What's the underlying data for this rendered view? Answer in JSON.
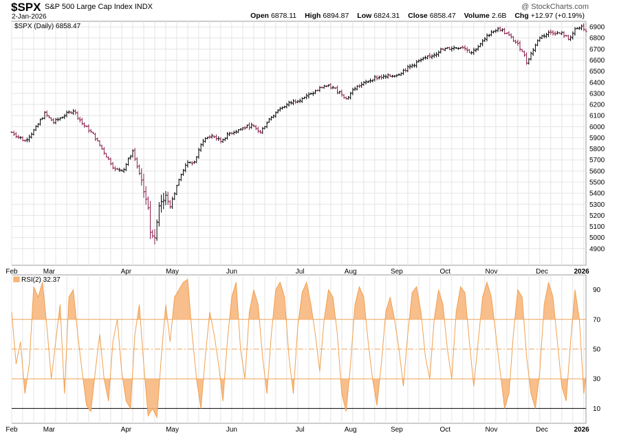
{
  "header": {
    "symbol": "$SPX",
    "name": "S&P 500 Large Cap Index",
    "exchange": "INDX",
    "date": "2-Jan-2026",
    "watermark": "@ StockCharts.com",
    "open_label": "Open",
    "open": "6878.11",
    "high_label": "High",
    "high": "6894.87",
    "low_label": "Low",
    "low": "6824.31",
    "close_label": "Close",
    "close": "6858.47",
    "volume_label": "Volume",
    "volume": "2.6B",
    "chg_label": "Chg",
    "chg": "+12.97 (+0.19%)"
  },
  "colors": {
    "up": "#000000",
    "down": "#8b1a4a",
    "rsi_line": "#f0a050",
    "rsi_fill": "#f7b77e",
    "grid": "#e4e4e4"
  },
  "chart_data": [
    {
      "type": "line",
      "title": "$SPX (Daily) 6858.47",
      "legend": "$SPX (Daily) 6858.47",
      "ylim": [
        4750,
        6950
      ],
      "yticks": [
        4900,
        5000,
        5100,
        5200,
        5300,
        5400,
        5500,
        5600,
        5700,
        5800,
        5900,
        6000,
        6100,
        6200,
        6300,
        6400,
        6500,
        6600,
        6700,
        6800,
        6900
      ],
      "months": [
        "Feb",
        "Mar",
        "Apr",
        "May",
        "Jun",
        "Jul",
        "Aug",
        "Sep",
        "Oct",
        "Nov",
        "Dec",
        "2026"
      ],
      "x_days": [
        0,
        17,
        52,
        73,
        100,
        131,
        154,
        175,
        197,
        218,
        241,
        259
      ],
      "total_days": 261,
      "close_path": [
        [
          0,
          5950
        ],
        [
          6,
          5870
        ],
        [
          11,
          5990
        ],
        [
          15,
          6120
        ],
        [
          19,
          6040
        ],
        [
          23,
          6090
        ],
        [
          28,
          6150
        ],
        [
          32,
          6030
        ],
        [
          37,
          5930
        ],
        [
          42,
          5770
        ],
        [
          47,
          5610
        ],
        [
          51,
          5620
        ],
        [
          55,
          5780
        ],
        [
          57,
          5640
        ],
        [
          59,
          5500
        ],
        [
          62,
          5270
        ],
        [
          63,
          5050
        ],
        [
          65,
          5000
        ],
        [
          67,
          5280
        ],
        [
          70,
          5380
        ],
        [
          72,
          5290
        ],
        [
          75,
          5470
        ],
        [
          79,
          5660
        ],
        [
          83,
          5680
        ],
        [
          87,
          5880
        ],
        [
          91,
          5920
        ],
        [
          95,
          5870
        ],
        [
          99,
          5940
        ],
        [
          104,
          5980
        ],
        [
          109,
          6010
        ],
        [
          113,
          5950
        ],
        [
          117,
          6070
        ],
        [
          121,
          6150
        ],
        [
          126,
          6210
        ],
        [
          131,
          6250
        ],
        [
          136,
          6290
        ],
        [
          142,
          6370
        ],
        [
          146,
          6350
        ],
        [
          150,
          6300
        ],
        [
          152,
          6250
        ],
        [
          156,
          6350
        ],
        [
          160,
          6390
        ],
        [
          165,
          6440
        ],
        [
          170,
          6450
        ],
        [
          175,
          6470
        ],
        [
          180,
          6530
        ],
        [
          185,
          6590
        ],
        [
          190,
          6630
        ],
        [
          195,
          6690
        ],
        [
          200,
          6710
        ],
        [
          205,
          6720
        ],
        [
          209,
          6670
        ],
        [
          213,
          6740
        ],
        [
          218,
          6860
        ],
        [
          222,
          6880
        ],
        [
          226,
          6820
        ],
        [
          229,
          6760
        ],
        [
          232,
          6690
        ],
        [
          234,
          6580
        ],
        [
          236,
          6660
        ],
        [
          240,
          6810
        ],
        [
          245,
          6850
        ],
        [
          250,
          6840
        ],
        [
          253,
          6790
        ],
        [
          256,
          6870
        ],
        [
          259,
          6900
        ],
        [
          261,
          6860
        ]
      ]
    },
    {
      "type": "line",
      "title": "RSI(2) 32.37",
      "legend": "RSI(2) 32.37",
      "ylim": [
        0,
        100
      ],
      "yticks": [
        10,
        30,
        50,
        70,
        90
      ],
      "reference_lines": [
        10,
        30,
        50,
        70
      ],
      "months": [
        "Feb",
        "Mar",
        "Apr",
        "May",
        "Jun",
        "Jul",
        "Aug",
        "Sep",
        "Oct",
        "Nov",
        "Dec",
        "2026"
      ],
      "rsi_path": [
        [
          0,
          75
        ],
        [
          2,
          40
        ],
        [
          4,
          55
        ],
        [
          6,
          20
        ],
        [
          8,
          40
        ],
        [
          10,
          92
        ],
        [
          12,
          85
        ],
        [
          14,
          95
        ],
        [
          16,
          65
        ],
        [
          18,
          30
        ],
        [
          20,
          55
        ],
        [
          22,
          80
        ],
        [
          24,
          20
        ],
        [
          26,
          85
        ],
        [
          28,
          90
        ],
        [
          30,
          60
        ],
        [
          32,
          35
        ],
        [
          34,
          12
        ],
        [
          36,
          8
        ],
        [
          38,
          35
        ],
        [
          40,
          60
        ],
        [
          42,
          30
        ],
        [
          44,
          15
        ],
        [
          46,
          55
        ],
        [
          48,
          70
        ],
        [
          50,
          35
        ],
        [
          52,
          15
        ],
        [
          54,
          10
        ],
        [
          56,
          60
        ],
        [
          58,
          80
        ],
        [
          60,
          40
        ],
        [
          62,
          5
        ],
        [
          64,
          10
        ],
        [
          66,
          4
        ],
        [
          68,
          45
        ],
        [
          70,
          80
        ],
        [
          72,
          55
        ],
        [
          74,
          85
        ],
        [
          76,
          90
        ],
        [
          78,
          95
        ],
        [
          80,
          97
        ],
        [
          82,
          60
        ],
        [
          84,
          30
        ],
        [
          86,
          10
        ],
        [
          88,
          45
        ],
        [
          90,
          75
        ],
        [
          92,
          60
        ],
        [
          94,
          40
        ],
        [
          96,
          15
        ],
        [
          98,
          55
        ],
        [
          100,
          85
        ],
        [
          102,
          95
        ],
        [
          104,
          50
        ],
        [
          106,
          30
        ],
        [
          108,
          75
        ],
        [
          110,
          90
        ],
        [
          112,
          80
        ],
        [
          114,
          45
        ],
        [
          116,
          20
        ],
        [
          118,
          60
        ],
        [
          120,
          90
        ],
        [
          122,
          95
        ],
        [
          124,
          85
        ],
        [
          126,
          45
        ],
        [
          128,
          20
        ],
        [
          130,
          65
        ],
        [
          132,
          88
        ],
        [
          134,
          95
        ],
        [
          136,
          80
        ],
        [
          138,
          60
        ],
        [
          140,
          35
        ],
        [
          142,
          70
        ],
        [
          144,
          90
        ],
        [
          146,
          85
        ],
        [
          148,
          60
        ],
        [
          150,
          20
        ],
        [
          152,
          8
        ],
        [
          154,
          40
        ],
        [
          156,
          80
        ],
        [
          158,
          92
        ],
        [
          160,
          85
        ],
        [
          162,
          55
        ],
        [
          164,
          30
        ],
        [
          166,
          12
        ],
        [
          168,
          40
        ],
        [
          170,
          75
        ],
        [
          172,
          85
        ],
        [
          174,
          70
        ],
        [
          176,
          50
        ],
        [
          178,
          25
        ],
        [
          180,
          60
        ],
        [
          182,
          88
        ],
        [
          184,
          92
        ],
        [
          186,
          75
        ],
        [
          188,
          45
        ],
        [
          190,
          30
        ],
        [
          192,
          70
        ],
        [
          194,
          90
        ],
        [
          196,
          80
        ],
        [
          198,
          50
        ],
        [
          200,
          30
        ],
        [
          202,
          75
        ],
        [
          204,
          92
        ],
        [
          206,
          88
        ],
        [
          208,
          55
        ],
        [
          210,
          25
        ],
        [
          212,
          55
        ],
        [
          214,
          85
        ],
        [
          216,
          95
        ],
        [
          218,
          85
        ],
        [
          220,
          60
        ],
        [
          222,
          35
        ],
        [
          224,
          10
        ],
        [
          226,
          20
        ],
        [
          228,
          60
        ],
        [
          230,
          90
        ],
        [
          232,
          85
        ],
        [
          234,
          45
        ],
        [
          236,
          20
        ],
        [
          238,
          10
        ],
        [
          240,
          35
        ],
        [
          242,
          80
        ],
        [
          244,
          95
        ],
        [
          246,
          85
        ],
        [
          248,
          55
        ],
        [
          250,
          25
        ],
        [
          252,
          15
        ],
        [
          254,
          55
        ],
        [
          256,
          90
        ],
        [
          258,
          70
        ],
        [
          260,
          20
        ],
        [
          261,
          32.37
        ]
      ]
    }
  ]
}
